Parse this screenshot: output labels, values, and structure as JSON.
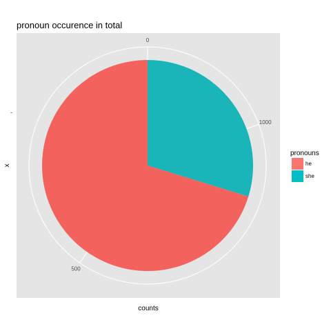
{
  "chart_data": {
    "type": "pie",
    "title": "pronoun occurence in total",
    "xlabel": "counts",
    "ylabel": "x",
    "y_tick_labels": [
      "-"
    ],
    "radial_ticks": [
      {
        "value": 0,
        "label": "0"
      },
      {
        "value": 500,
        "label": "500"
      },
      {
        "value": 1000,
        "label": "1000"
      }
    ],
    "legend": {
      "title": "pronouns",
      "position": "right",
      "entries": [
        {
          "label": "he",
          "color": "#F8766D"
        },
        {
          "label": "she",
          "color": "#00BFC4"
        }
      ]
    },
    "series": [
      {
        "label": "she",
        "value": 369,
        "color": "#19B5B9"
      },
      {
        "label": "he",
        "value": 871,
        "color": "#F4625E"
      }
    ],
    "total": 1240,
    "panel_background": "#E5E5E5",
    "grid": true
  }
}
